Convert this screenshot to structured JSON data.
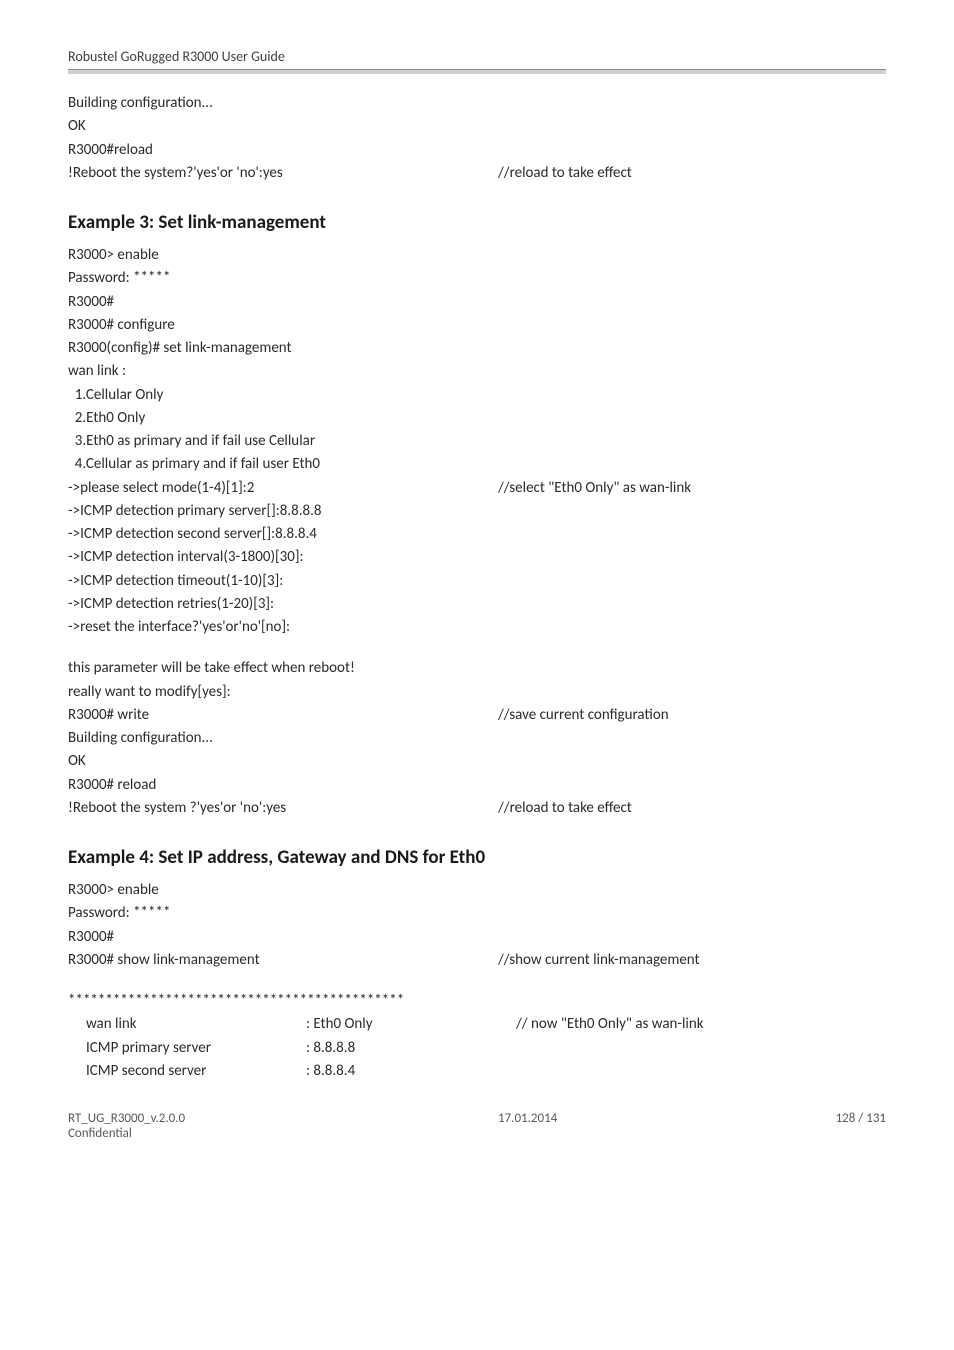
{
  "doc_header": "Robustel GoRugged R3000 User Guide",
  "intro": {
    "l1": "Building configuration...",
    "l2": "OK",
    "l3": "R3000#reload",
    "l4_left": "!Reboot the system?'yes'or 'no':yes",
    "l4_right": "//reload to take effect"
  },
  "ex3_title": "Example 3: Set link-management",
  "ex3": {
    "l1": "R3000> enable",
    "l2": "Password: *****",
    "l3": "R3000#",
    "l4": "R3000# configure",
    "l5": "R3000(config)# set link-management",
    "l6": "wan link :",
    "l7": "  1.Cellular Only",
    "l8": "  2.Eth0 Only",
    "l9": "  3.Eth0 as primary and if fail use Cellular",
    "l10": "  4.Cellular as primary and if fail user Eth0",
    "l11_left": "->please select mode(1-4)[1]:2",
    "l11_right": "//select \"Eth0 Only\" as wan-link",
    "l12": "->ICMP detection primary server[]:8.8.8.8",
    "l13": "->ICMP detection second server[]:8.8.8.4",
    "l14": "->ICMP detection interval(3-1800)[30]:",
    "l15": "->ICMP detection timeout(1-10)[3]:",
    "l16": "->ICMP detection retries(1-20)[3]:",
    "l17": "->reset the interface?'yes'or'no'[no]:",
    "l18": "this parameter will be take effect when reboot!",
    "l19": "really want to modify[yes]:",
    "l20_left": "R3000# write",
    "l20_right": "//save current configuration",
    "l21": "Building configuration...",
    "l22": "OK",
    "l23": "R3000# reload",
    "l24_left": "!Reboot the system ?'yes'or 'no':yes",
    "l24_right": "//reload to take effect"
  },
  "ex4_title": "Example 4: Set IP address, Gateway and DNS for Eth0",
  "ex4": {
    "l1": "R3000> enable",
    "l2": "Password: *****",
    "l3": "R3000#",
    "l4_left": "R3000# show link-management",
    "l4_right": "//show current link-management",
    "stars": "*********************************************",
    "r1c1": "wan link",
    "r1c2": ": Eth0 Only",
    "r1c3": "// now \"Eth0 Only\" as wan-link",
    "r2c1": "ICMP primary server",
    "r2c2": ": 8.8.8.8",
    "r3c1": "ICMP second server",
    "r3c2": ": 8.8.8.4"
  },
  "footer": {
    "left1": "RT_UG_R3000_v.2.0.0",
    "left2": "Confidential",
    "mid": "17.01.2014",
    "right": "128 / 131"
  }
}
